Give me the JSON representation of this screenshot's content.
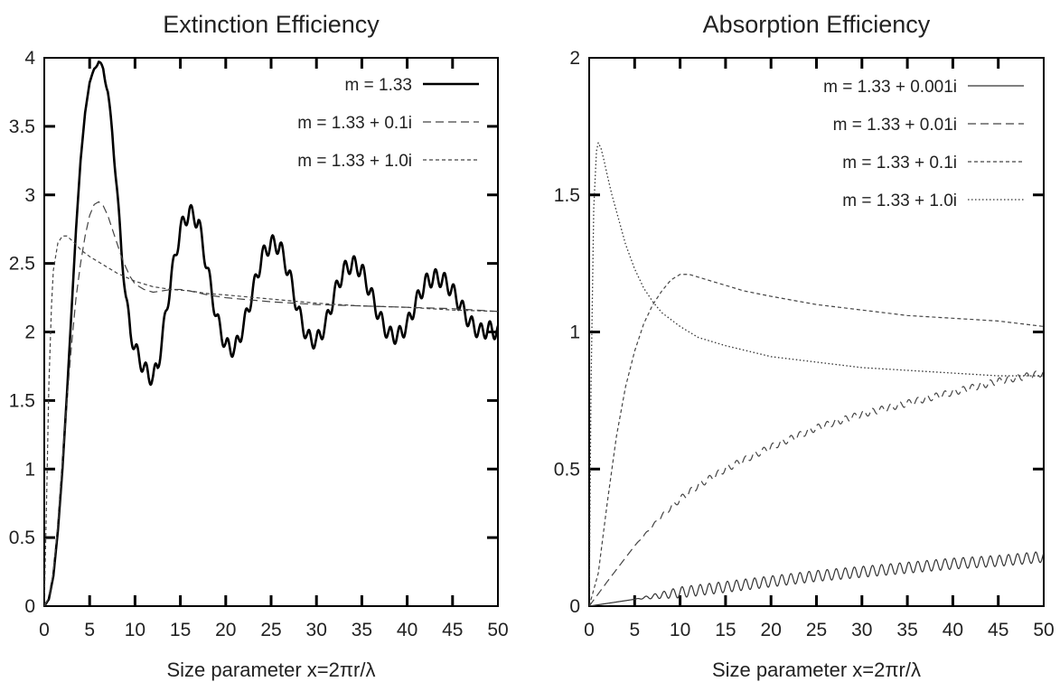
{
  "chart_data": [
    {
      "type": "line",
      "title": "Extinction Efficiency",
      "xlabel": "Size parameter x=2πr/λ",
      "ylabel": "",
      "xlim": [
        0,
        50
      ],
      "ylim": [
        0,
        4
      ],
      "xticks": [
        "0",
        "5",
        "10",
        "15",
        "20",
        "25",
        "30",
        "35",
        "40",
        "45",
        "50"
      ],
      "yticks": [
        "0",
        "0.5",
        "1",
        "1.5",
        "2",
        "2.5",
        "3",
        "3.5",
        "4"
      ],
      "grid": false,
      "legend_position": "top-right",
      "series": [
        {
          "name": "m = 1.33",
          "style": "solid-thick",
          "color": "#000000",
          "x": [
            0,
            0.5,
            1,
            1.5,
            2,
            2.5,
            3,
            3.5,
            4,
            4.5,
            5,
            5.5,
            6,
            6.5,
            7,
            7.5,
            8,
            8.5,
            9,
            9.5,
            10,
            10.5,
            11,
            11.5,
            12,
            12.5,
            13,
            14,
            15,
            16,
            17,
            18,
            19,
            20,
            21,
            22,
            23,
            24,
            25,
            26,
            27,
            28,
            29,
            30,
            31,
            32,
            33,
            34,
            35,
            36,
            37,
            38,
            39,
            40,
            41,
            42,
            43,
            44,
            45,
            46,
            47,
            48,
            49,
            50
          ],
          "y": [
            0,
            0.05,
            0.22,
            0.55,
            1.0,
            1.55,
            2.15,
            2.75,
            3.25,
            3.6,
            3.82,
            3.92,
            3.97,
            3.92,
            3.75,
            3.45,
            3.05,
            2.6,
            2.25,
            2.0,
            1.88,
            1.8,
            1.74,
            1.68,
            1.67,
            1.75,
            1.95,
            2.4,
            2.75,
            2.88,
            2.8,
            2.45,
            2.1,
            1.9,
            1.87,
            2.05,
            2.3,
            2.55,
            2.65,
            2.62,
            2.42,
            2.15,
            1.96,
            1.93,
            2.05,
            2.28,
            2.45,
            2.5,
            2.45,
            2.28,
            2.1,
            1.98,
            1.97,
            2.05,
            2.22,
            2.36,
            2.4,
            2.38,
            2.3,
            2.18,
            2.06,
            2.0,
            2.02,
            2.0
          ],
          "wiggle": 0.06
        },
        {
          "name": "m = 1.33 + 0.1i",
          "style": "long-dash",
          "color": "#444444",
          "x": [
            0,
            0.5,
            1,
            1.5,
            2,
            2.5,
            3,
            3.5,
            4,
            4.5,
            5,
            5.5,
            6,
            6.5,
            7,
            7.5,
            8,
            8.5,
            9,
            9.5,
            10,
            11,
            12,
            13,
            14,
            15,
            16,
            18,
            20,
            25,
            30,
            35,
            40,
            45,
            50
          ],
          "y": [
            0,
            0.06,
            0.25,
            0.6,
            1.05,
            1.5,
            1.9,
            2.25,
            2.5,
            2.7,
            2.85,
            2.93,
            2.95,
            2.92,
            2.85,
            2.75,
            2.65,
            2.55,
            2.47,
            2.4,
            2.35,
            2.31,
            2.29,
            2.3,
            2.31,
            2.31,
            2.3,
            2.27,
            2.25,
            2.22,
            2.2,
            2.19,
            2.18,
            2.17,
            2.15
          ]
        },
        {
          "name": "m = 1.33 + 1.0i",
          "style": "short-dash",
          "color": "#444444",
          "x": [
            0,
            0.2,
            0.5,
            0.8,
            1,
            1.5,
            2,
            2.5,
            3,
            3.5,
            4,
            5,
            6,
            7,
            8,
            9,
            10,
            11,
            12,
            14,
            16,
            18,
            20,
            25,
            30,
            35,
            40,
            45,
            50
          ],
          "y": [
            0,
            0.6,
            1.6,
            2.2,
            2.45,
            2.65,
            2.7,
            2.7,
            2.67,
            2.64,
            2.6,
            2.55,
            2.51,
            2.47,
            2.43,
            2.4,
            2.37,
            2.35,
            2.33,
            2.31,
            2.3,
            2.28,
            2.27,
            2.24,
            2.21,
            2.19,
            2.18,
            2.16,
            2.15
          ]
        }
      ]
    },
    {
      "type": "line",
      "title": "Absorption Efficiency",
      "xlabel": "Size parameter x=2πr/λ",
      "ylabel": "",
      "xlim": [
        0,
        50
      ],
      "ylim": [
        0,
        2
      ],
      "xticks": [
        "0",
        "5",
        "10",
        "15",
        "20",
        "25",
        "30",
        "35",
        "40",
        "45",
        "50"
      ],
      "yticks": [
        "0",
        "0.5",
        "1",
        "1.5",
        "2"
      ],
      "grid": false,
      "legend_position": "top-right",
      "series": [
        {
          "name": "m = 1.33 + 0.001i",
          "style": "solid-thin",
          "color": "#333333",
          "x": [
            0,
            5,
            10,
            15,
            20,
            25,
            30,
            35,
            40,
            45,
            50
          ],
          "y": [
            0,
            0.025,
            0.05,
            0.07,
            0.09,
            0.11,
            0.125,
            0.14,
            0.155,
            0.165,
            0.18
          ],
          "wiggle": 0.02
        },
        {
          "name": "m = 1.33 + 0.01i",
          "style": "long-dash",
          "color": "#444444",
          "x": [
            0,
            2,
            5,
            8,
            10,
            12,
            15,
            20,
            25,
            30,
            35,
            40,
            45,
            50
          ],
          "y": [
            0,
            0.09,
            0.22,
            0.33,
            0.39,
            0.44,
            0.5,
            0.58,
            0.65,
            0.7,
            0.74,
            0.78,
            0.82,
            0.85
          ],
          "wiggle": 0.012
        },
        {
          "name": "m = 1.33 + 0.1i",
          "style": "short-dash",
          "color": "#444444",
          "x": [
            0,
            1,
            2,
            3,
            4,
            5,
            6,
            7,
            8,
            9,
            10,
            11,
            12,
            13,
            15,
            17,
            20,
            25,
            30,
            35,
            40,
            45,
            50
          ],
          "y": [
            0,
            0.12,
            0.38,
            0.62,
            0.8,
            0.93,
            1.03,
            1.1,
            1.15,
            1.19,
            1.21,
            1.21,
            1.2,
            1.19,
            1.17,
            1.15,
            1.13,
            1.1,
            1.08,
            1.06,
            1.05,
            1.04,
            1.02
          ]
        },
        {
          "name": "m = 1.33 + 1.0i",
          "style": "dotted",
          "color": "#333333",
          "x": [
            0,
            0.2,
            0.5,
            0.8,
            1,
            1.3,
            1.6,
            2,
            2.5,
            3,
            3.5,
            4,
            5,
            6,
            7,
            8,
            10,
            12,
            15,
            20,
            25,
            30,
            35,
            40,
            45,
            50
          ],
          "y": [
            0,
            0.8,
            1.45,
            1.66,
            1.69,
            1.67,
            1.63,
            1.57,
            1.5,
            1.44,
            1.38,
            1.32,
            1.23,
            1.16,
            1.11,
            1.07,
            1.02,
            0.98,
            0.95,
            0.91,
            0.89,
            0.87,
            0.86,
            0.85,
            0.84,
            0.84
          ]
        }
      ]
    }
  ]
}
